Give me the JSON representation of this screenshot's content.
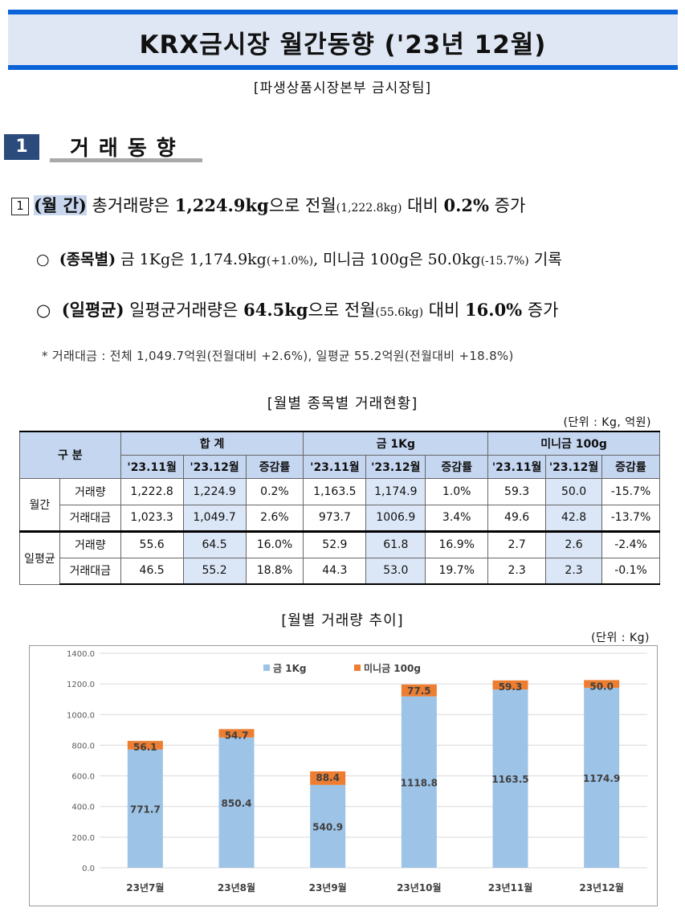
{
  "header": {
    "title": "KRX금시장 월간동향 ('23년 12월)",
    "subtitle": "[파생상품시장본부 금시장팀]"
  },
  "section": {
    "number": "1",
    "title": "거래동향"
  },
  "summary": {
    "item_box": "1",
    "line1": {
      "label": "(월 간)",
      "t1": " 총거래량은 ",
      "v1": "1,224.9kg",
      "t2": "으로 전월",
      "prev": "(1,222.8kg)",
      "t3": " 대비 ",
      "v2": "0.2%",
      "t4": " 증가"
    },
    "line2": {
      "bullet": "○",
      "label": "(종목별)",
      "t1": " 금 1Kg은 ",
      "v1": "1,174.9kg",
      "c1": "(+1.0%)",
      "t2": ", 미니금 100g은 ",
      "v2": "50.0kg",
      "c2": "(-15.7%)",
      "t3": " 기록"
    },
    "line3": {
      "bullet": "○",
      "label": "(일평균)",
      "t1": " 일평균거래량은 ",
      "v1": "64.5kg",
      "t2": "으로 전월",
      "prev": "(55.6kg)",
      "t3": " 대비 ",
      "v2": "16.0%",
      "t4": " 증가"
    },
    "note": "* 거래대금 : 전체 1,049.7억원(전월대비 +2.6%), 일평균 55.2억원(전월대비 +18.8%)"
  },
  "table": {
    "title": "[월별 종목별 거래현황]",
    "unit": "(단위 : Kg, 억원)",
    "corner": "구 분",
    "groups": [
      "합 계",
      "금 1Kg",
      "미니금 100g"
    ],
    "subheaders": [
      "'23.11월",
      "'23.12월",
      "증감률"
    ],
    "rows": [
      {
        "group": "월간",
        "item": "거래량",
        "cells": [
          "1,222.8",
          "1,224.9",
          "0.2%",
          "1,163.5",
          "1,174.9",
          "1.0%",
          "59.3",
          "50.0",
          "-15.7%"
        ]
      },
      {
        "group": "",
        "item": "거래대금",
        "cells": [
          "1,023.3",
          "1,049.7",
          "2.6%",
          "973.7",
          "1006.9",
          "3.4%",
          "49.6",
          "42.8",
          "-13.7%"
        ]
      },
      {
        "group": "일평균",
        "item": "거래량",
        "cells": [
          "55.6",
          "64.5",
          "16.0%",
          "52.9",
          "61.8",
          "16.9%",
          "2.7",
          "2.6",
          "-2.4%"
        ]
      },
      {
        "group": "",
        "item": "거래대금",
        "cells": [
          "46.5",
          "55.2",
          "18.8%",
          "44.3",
          "53.0",
          "19.7%",
          "2.3",
          "2.3",
          "-0.1%"
        ]
      }
    ]
  },
  "chart_title": "[월별 거래량 추이]",
  "chart_unit": "(단위 : Kg)",
  "chart_data": {
    "type": "bar",
    "stacked": true,
    "categories": [
      "23년7월",
      "23년8월",
      "23년9월",
      "23년10월",
      "23년11월",
      "23년12월"
    ],
    "series": [
      {
        "name": "금 1Kg",
        "values": [
          771.7,
          850.4,
          540.9,
          1118.8,
          1163.5,
          1174.9
        ],
        "color": "#9dc3e6"
      },
      {
        "name": "미니금 100g",
        "values": [
          56.1,
          54.7,
          88.4,
          77.5,
          59.3,
          50.0
        ],
        "color": "#ed7d31"
      }
    ],
    "ylim": [
      0,
      1400
    ],
    "yticks": [
      "0.0",
      "200.0",
      "400.0",
      "600.0",
      "800.0",
      "1000.0",
      "1200.0",
      "1400.0"
    ],
    "grid": true,
    "legend": "top"
  }
}
